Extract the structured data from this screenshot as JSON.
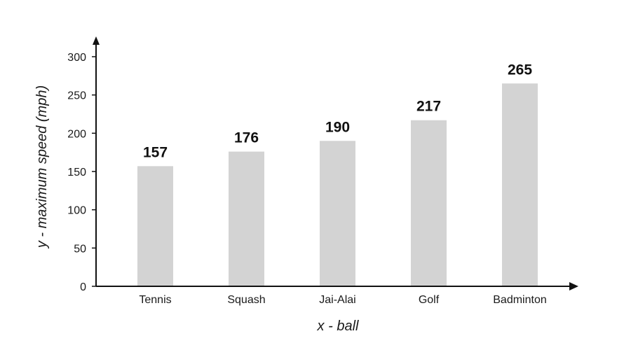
{
  "chart_data": {
    "type": "bar",
    "categories": [
      "Tennis",
      "Squash",
      "Jai-Alai",
      "Golf",
      "Badminton"
    ],
    "values": [
      157,
      176,
      190,
      217,
      265
    ],
    "data_labels": [
      "157",
      "176",
      "190",
      "217",
      "265"
    ],
    "xlabel": "x - ball",
    "ylabel": "y - maximum speed (mph)",
    "ylim": [
      0,
      300
    ],
    "yticks": [
      0,
      50,
      100,
      150,
      200,
      250,
      300
    ],
    "grid": false,
    "legend": "none",
    "bar_color": "#d3d3d3",
    "axis_color": "#111111"
  }
}
